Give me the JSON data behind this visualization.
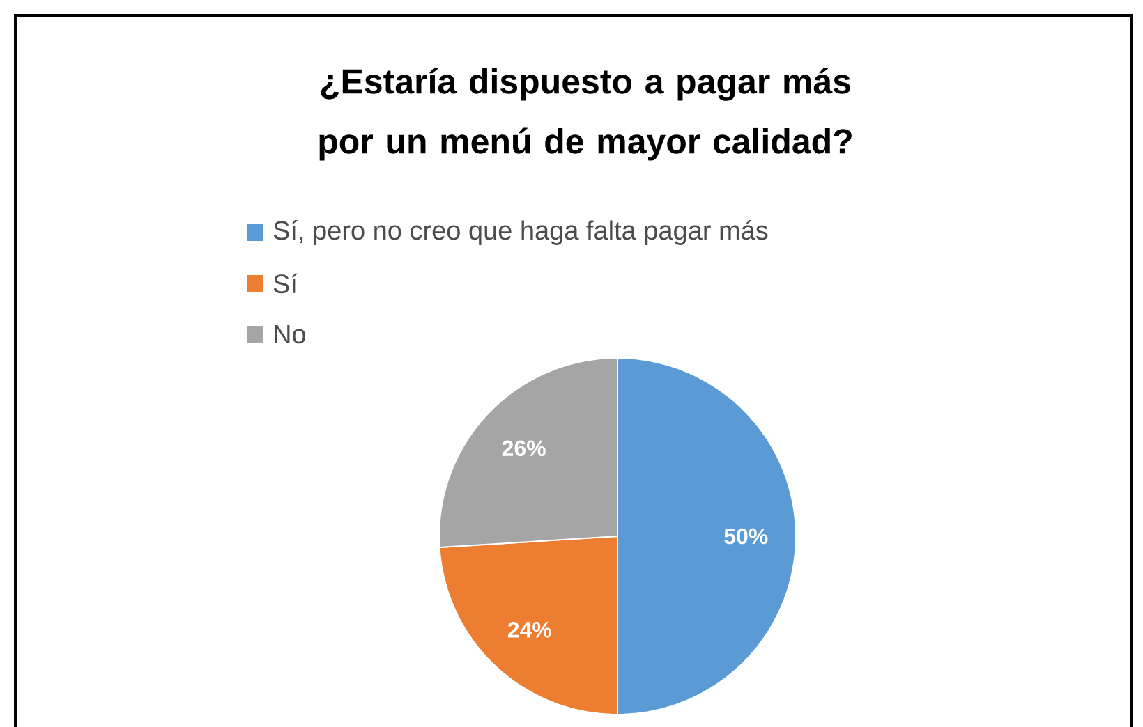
{
  "chart_data": {
    "type": "pie",
    "title": "¿Estaría dispuesto a pagar más por un menú de mayor calidad?",
    "categories": [
      "Sí, pero no creo que haga falta pagar más",
      "Sí",
      "No"
    ],
    "values": [
      50,
      24,
      26
    ],
    "value_labels": [
      "50%",
      "24%",
      "26%"
    ],
    "colors": [
      "#5b9bd5",
      "#ed7d31",
      "#a5a5a5"
    ],
    "legend": "top"
  }
}
